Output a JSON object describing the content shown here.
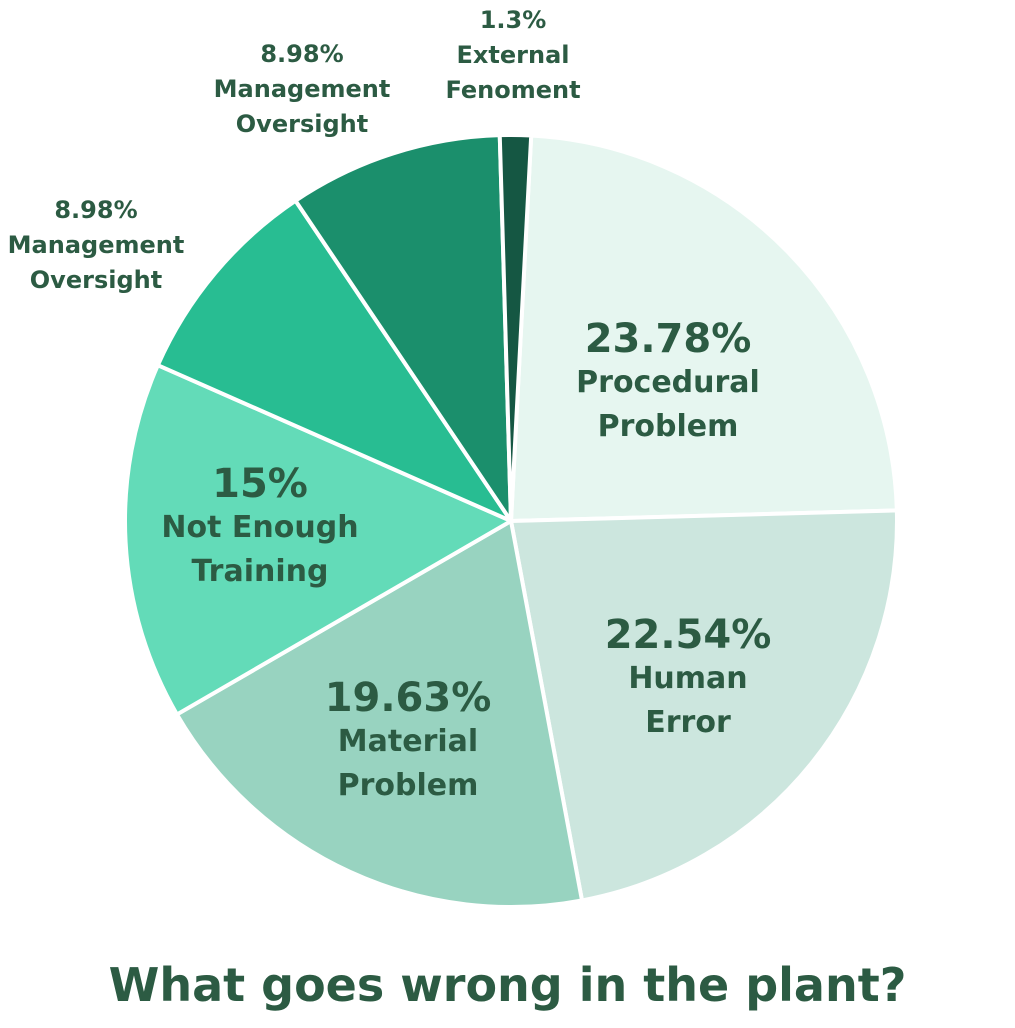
{
  "chart_data": {
    "type": "pie",
    "title": "What goes wrong in the plant?",
    "start_angle_deg": 3,
    "slices": [
      {
        "value": 23.78,
        "percent_label": "23.78%",
        "label_lines": [
          "Procedural",
          "Problem"
        ],
        "color": "#e6f6f0",
        "label_color": "#2c5b43"
      },
      {
        "value": 22.54,
        "percent_label": "22.54%",
        "label_lines": [
          "Human",
          "Error"
        ],
        "color": "#cce6de",
        "label_color": "#2c5b43"
      },
      {
        "value": 19.63,
        "percent_label": "19.63%",
        "label_lines": [
          "Material",
          "Problem"
        ],
        "color": "#98d3c0",
        "label_color": "#2c5b43"
      },
      {
        "value": 15,
        "percent_label": "15%",
        "label_lines": [
          "Not Enough",
          "Training"
        ],
        "color": "#63dbb8",
        "label_color": "#2c5b43"
      },
      {
        "value": 8.98,
        "percent_label": "8.98%",
        "label_lines": [
          "Management",
          "Oversight"
        ],
        "color": "#28bd92",
        "label_color": "#2c5b43"
      },
      {
        "value": 8.98,
        "percent_label": "8.98%",
        "label_lines": [
          "Management",
          "Oversight"
        ],
        "color": "#1b8f6c",
        "label_color": "#2c5b43"
      },
      {
        "value": 1.3,
        "percent_label": "1.3%",
        "label_lines": [
          "External",
          "Fenoment"
        ],
        "color": "#155743",
        "label_color": "#2c5b43"
      }
    ]
  }
}
